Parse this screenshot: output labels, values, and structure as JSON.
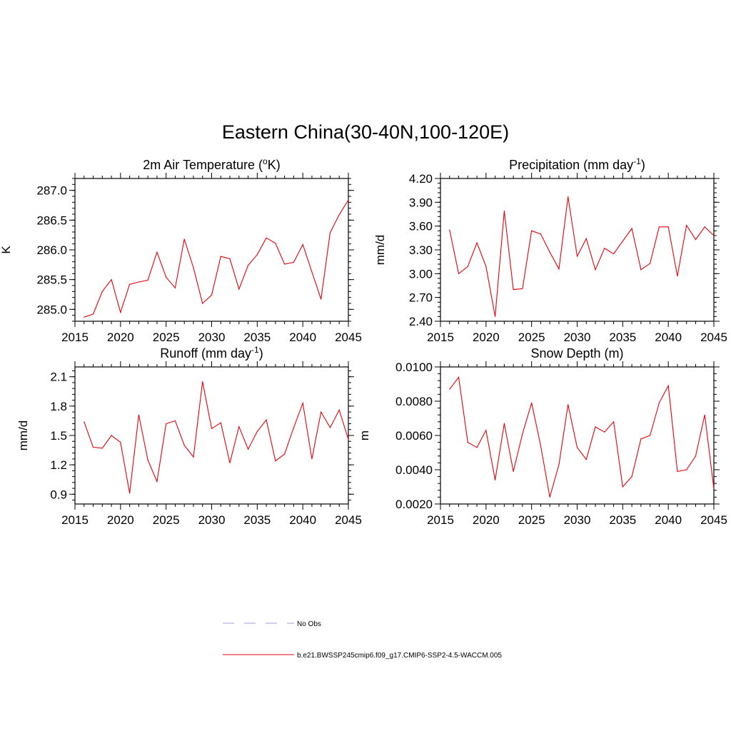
{
  "title": "Eastern China(30-40N,100-120E)",
  "colors": {
    "series": "#e8000b",
    "obs": "#9f9fe0",
    "axis": "#000000"
  },
  "legend": [
    {
      "label": "No Obs",
      "style": "dashed",
      "color": "#9f9fe0"
    },
    {
      "label": "b.e21.BWSSP245cmip6.f09_g17.CMIP6-SSP2-4.5-WACCM.005",
      "style": "solid",
      "color": "#e8000b"
    }
  ],
  "chart_data": [
    {
      "type": "line",
      "title": "2m Air Temperature (",
      "title_sup": "o",
      "title_tail": "K)",
      "xlabel": "",
      "ylabel": "K",
      "xlim": [
        2015,
        2045
      ],
      "ylim": [
        284.8,
        287.2
      ],
      "xticks": [
        2015,
        2020,
        2025,
        2030,
        2035,
        2040,
        2045
      ],
      "xtick_labels": [
        "2015",
        "2020",
        "2025",
        "2030",
        "2035",
        "2040",
        "2045"
      ],
      "yticks": [
        285.0,
        285.5,
        286.0,
        286.5,
        287.0
      ],
      "ytick_labels": [
        "285.0",
        "285.5",
        "286.0",
        "286.5",
        "287.0"
      ],
      "series": [
        {
          "name": "b.e21.BWSSP245cmip6.f09_g17.CMIP6-SSP2-4.5-WACCM.005",
          "x": [
            2016,
            2017,
            2018,
            2019,
            2020,
            2021,
            2022,
            2023,
            2024,
            2025,
            2026,
            2027,
            2028,
            2029,
            2030,
            2031,
            2032,
            2033,
            2034,
            2035,
            2036,
            2037,
            2038,
            2039,
            2040,
            2041,
            2042,
            2043,
            2044,
            2045
          ],
          "y": [
            284.87,
            284.92,
            285.3,
            285.5,
            284.95,
            285.42,
            285.46,
            285.49,
            285.96,
            285.54,
            285.36,
            286.18,
            285.7,
            285.1,
            285.24,
            285.89,
            285.85,
            285.34,
            285.74,
            285.92,
            286.2,
            286.11,
            285.76,
            285.79,
            286.09,
            285.63,
            285.17,
            286.29,
            286.59,
            286.84
          ]
        }
      ]
    },
    {
      "type": "line",
      "title": "Precipitation (mm day",
      "title_sup": "-1",
      "title_tail": ")",
      "xlabel": "",
      "ylabel": "mm/d",
      "xlim": [
        2015,
        2045
      ],
      "ylim": [
        2.4,
        4.2
      ],
      "xticks": [
        2015,
        2020,
        2025,
        2030,
        2035,
        2040,
        2045
      ],
      "xtick_labels": [
        "2015",
        "2020",
        "2025",
        "2030",
        "2035",
        "2040",
        "2045"
      ],
      "yticks": [
        2.4,
        2.7,
        3.0,
        3.3,
        3.6,
        3.9,
        4.2
      ],
      "ytick_labels": [
        "2.40",
        "2.70",
        "3.00",
        "3.30",
        "3.60",
        "3.90",
        "4.20"
      ],
      "series": [
        {
          "name": "b.e21.BWSSP245cmip6.f09_g17.CMIP6-SSP2-4.5-WACCM.005",
          "x": [
            2016,
            2017,
            2018,
            2019,
            2020,
            2021,
            2022,
            2023,
            2024,
            2025,
            2026,
            2027,
            2028,
            2029,
            2030,
            2031,
            2032,
            2033,
            2034,
            2035,
            2036,
            2037,
            2038,
            2039,
            2040,
            2041,
            2042,
            2043,
            2044,
            2045
          ],
          "y": [
            3.55,
            3.0,
            3.09,
            3.39,
            3.09,
            2.46,
            3.79,
            2.8,
            2.81,
            3.54,
            3.5,
            3.27,
            3.06,
            3.97,
            3.22,
            3.44,
            3.05,
            3.32,
            3.25,
            3.41,
            3.57,
            3.05,
            3.13,
            3.59,
            3.59,
            2.97,
            3.61,
            3.43,
            3.59,
            3.48
          ]
        }
      ]
    },
    {
      "type": "line",
      "title": "Runoff (mm day",
      "title_sup": "-1",
      "title_tail": ")",
      "xlabel": "",
      "ylabel": "mm/d",
      "xlim": [
        2015,
        2045
      ],
      "ylim": [
        0.8,
        2.2
      ],
      "xticks": [
        2015,
        2020,
        2025,
        2030,
        2035,
        2040,
        2045
      ],
      "xtick_labels": [
        "2015",
        "2020",
        "2025",
        "2030",
        "2035",
        "2040",
        "2045"
      ],
      "yticks": [
        0.9,
        1.2,
        1.5,
        1.8,
        2.1
      ],
      "ytick_labels": [
        "0.9",
        "1.2",
        "1.5",
        "1.8",
        "2.1"
      ],
      "series": [
        {
          "name": "b.e21.BWSSP245cmip6.f09_g17.CMIP6-SSP2-4.5-WACCM.005",
          "x": [
            2016,
            2017,
            2018,
            2019,
            2020,
            2021,
            2022,
            2023,
            2024,
            2025,
            2026,
            2027,
            2028,
            2029,
            2030,
            2031,
            2032,
            2033,
            2034,
            2035,
            2036,
            2037,
            2038,
            2039,
            2040,
            2041,
            2042,
            2043,
            2044,
            2045
          ],
          "y": [
            1.64,
            1.38,
            1.37,
            1.5,
            1.43,
            0.91,
            1.71,
            1.25,
            1.03,
            1.62,
            1.65,
            1.4,
            1.28,
            2.05,
            1.57,
            1.63,
            1.22,
            1.59,
            1.36,
            1.54,
            1.66,
            1.24,
            1.31,
            1.58,
            1.83,
            1.26,
            1.74,
            1.58,
            1.76,
            1.46
          ]
        }
      ]
    },
    {
      "type": "line",
      "title": "Snow Depth (m)",
      "title_sup": "",
      "title_tail": "",
      "xlabel": "",
      "ylabel": "m",
      "xlim": [
        2015,
        2045
      ],
      "ylim": [
        0.002,
        0.01
      ],
      "xticks": [
        2015,
        2020,
        2025,
        2030,
        2035,
        2040,
        2045
      ],
      "xtick_labels": [
        "2015",
        "2020",
        "2025",
        "2030",
        "2035",
        "2040",
        "2045"
      ],
      "yticks": [
        0.002,
        0.004,
        0.006,
        0.008,
        0.01
      ],
      "ytick_labels": [
        "0.0020",
        "0.0040",
        "0.0060",
        "0.0080",
        "0.0100"
      ],
      "series": [
        {
          "name": "b.e21.BWSSP245cmip6.f09_g17.CMIP6-SSP2-4.5-WACCM.005",
          "x": [
            2016,
            2017,
            2018,
            2019,
            2020,
            2021,
            2022,
            2023,
            2024,
            2025,
            2026,
            2027,
            2028,
            2029,
            2030,
            2031,
            2032,
            2033,
            2034,
            2035,
            2036,
            2037,
            2038,
            2039,
            2040,
            2041,
            2042,
            2043,
            2044,
            2045
          ],
          "y": [
            0.0087,
            0.0094,
            0.0056,
            0.0053,
            0.0063,
            0.0034,
            0.0067,
            0.0039,
            0.0061,
            0.0079,
            0.0054,
            0.0024,
            0.0043,
            0.0078,
            0.0053,
            0.0046,
            0.0065,
            0.0062,
            0.0068,
            0.003,
            0.0036,
            0.0058,
            0.006,
            0.0079,
            0.0089,
            0.0039,
            0.004,
            0.0048,
            0.0072,
            0.0029
          ]
        }
      ]
    }
  ]
}
